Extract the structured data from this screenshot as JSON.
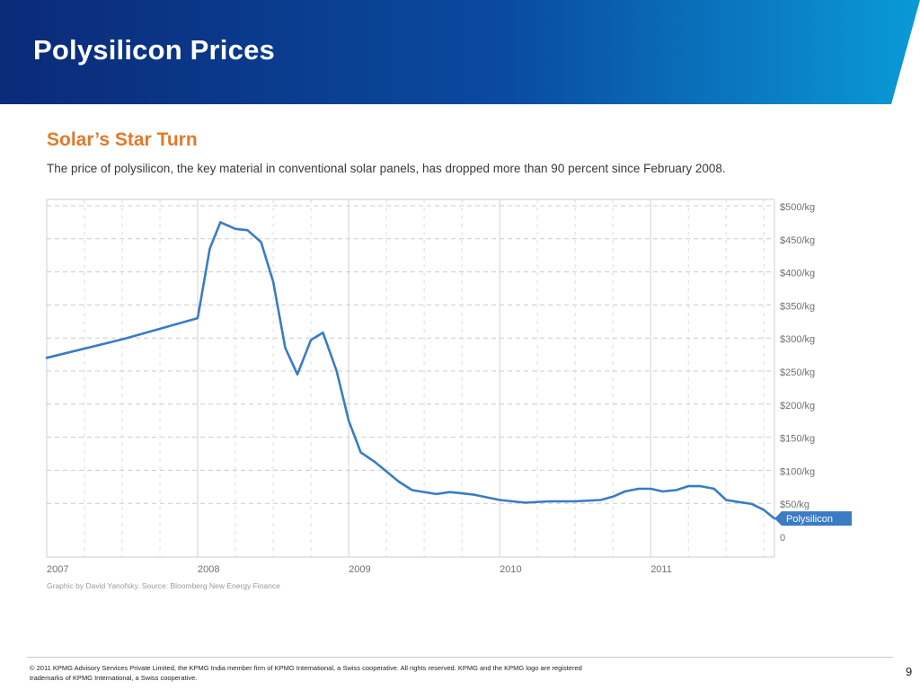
{
  "slide": {
    "title": "Polysilicon Prices",
    "page_number": "9",
    "footer": "© 2011 KPMG Advisory Services Private Limited, the KPMG India member firm of KPMG International, a Swiss cooperative. All rights reserved. KPMG and the KPMG logo are registered trademarks of KPMG International, a Swiss cooperative.",
    "colors": {
      "header_dark": "#0b2a78",
      "header_light": "#0a9ad8",
      "accent_title": "#e07a2a",
      "line": "#3a7cc4"
    }
  },
  "chart_data": {
    "type": "line",
    "title": "Solar’s Star Turn",
    "subtitle": "The price of polysilicon, the key material in conventional solar panels, has dropped more than 90 percent since February 2008.",
    "credit": "Graphic by David Yanofsky. Source: Bloomberg New Energy Finance",
    "x_tick_labels": [
      "2007",
      "2008",
      "2009",
      "2010",
      "2011"
    ],
    "y_tick_labels": [
      "0",
      "$50/kg",
      "$100/kg",
      "$150/kg",
      "$200/kg",
      "$250/kg",
      "$300/kg",
      "$350/kg",
      "$400/kg",
      "$450/kg",
      "$500/kg"
    ],
    "y_ticks": [
      0,
      50,
      100,
      150,
      200,
      250,
      300,
      350,
      400,
      450,
      500
    ],
    "xlim": [
      2007.0,
      2011.82
    ],
    "ylim": [
      0,
      500
    ],
    "grid": true,
    "y_axis_side": "right",
    "series": [
      {
        "name": "Polysilicon",
        "color": "#3a7cc4",
        "points": [
          [
            2007.0,
            270
          ],
          [
            2007.5,
            298
          ],
          [
            2008.0,
            330
          ],
          [
            2008.08,
            435
          ],
          [
            2008.15,
            475
          ],
          [
            2008.25,
            465
          ],
          [
            2008.33,
            463
          ],
          [
            2008.42,
            445
          ],
          [
            2008.5,
            385
          ],
          [
            2008.58,
            285
          ],
          [
            2008.66,
            245
          ],
          [
            2008.75,
            297
          ],
          [
            2008.83,
            308
          ],
          [
            2008.92,
            250
          ],
          [
            2009.0,
            175
          ],
          [
            2009.08,
            127
          ],
          [
            2009.17,
            113
          ],
          [
            2009.33,
            83
          ],
          [
            2009.42,
            70
          ],
          [
            2009.58,
            64
          ],
          [
            2009.67,
            67
          ],
          [
            2009.83,
            63
          ],
          [
            2010.0,
            55
          ],
          [
            2010.17,
            51
          ],
          [
            2010.33,
            53
          ],
          [
            2010.5,
            53
          ],
          [
            2010.67,
            55
          ],
          [
            2010.75,
            60
          ],
          [
            2010.83,
            68
          ],
          [
            2010.92,
            72
          ],
          [
            2011.0,
            72
          ],
          [
            2011.08,
            68
          ],
          [
            2011.17,
            70
          ],
          [
            2011.25,
            76
          ],
          [
            2011.33,
            76
          ],
          [
            2011.42,
            72
          ],
          [
            2011.5,
            55
          ],
          [
            2011.58,
            52
          ],
          [
            2011.67,
            49
          ],
          [
            2011.75,
            40
          ],
          [
            2011.82,
            27
          ]
        ]
      }
    ]
  }
}
